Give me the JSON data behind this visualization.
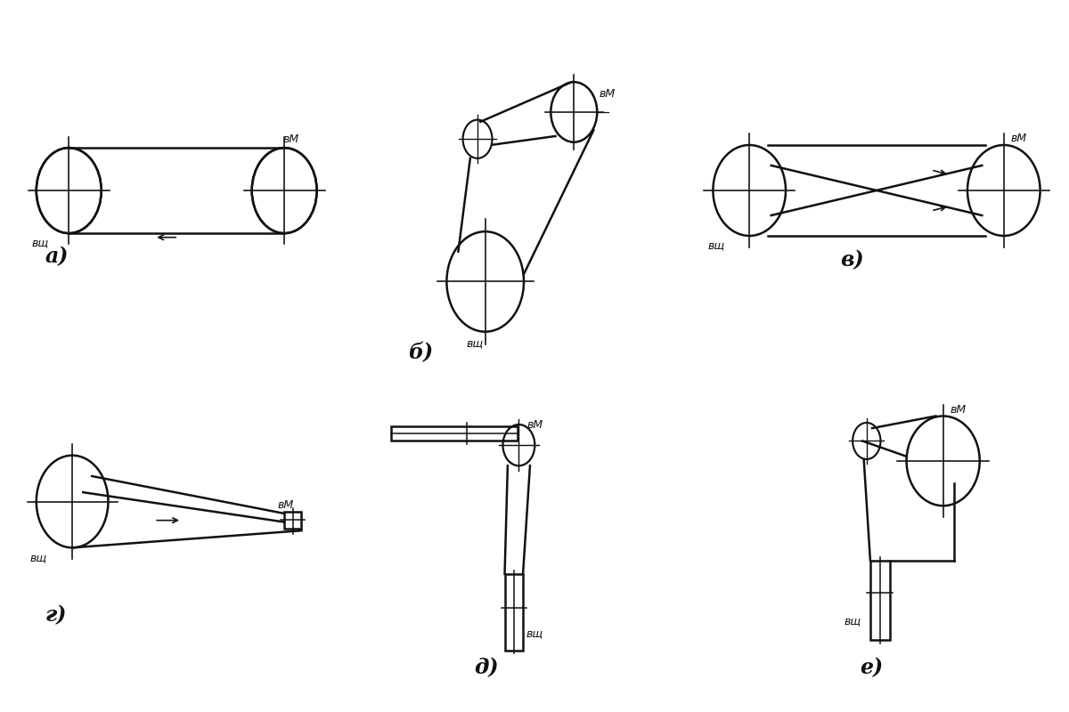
{
  "bg_color": "#ffffff",
  "line_color": "#111111",
  "lw": 1.8,
  "lw_thin": 1.1,
  "labels": {
    "a": "а)",
    "b": "б)",
    "v": "в)",
    "g": "г)",
    "d": "д)",
    "e": "е)"
  },
  "vm_label": "вМ",
  "vsh_label": "вщ"
}
